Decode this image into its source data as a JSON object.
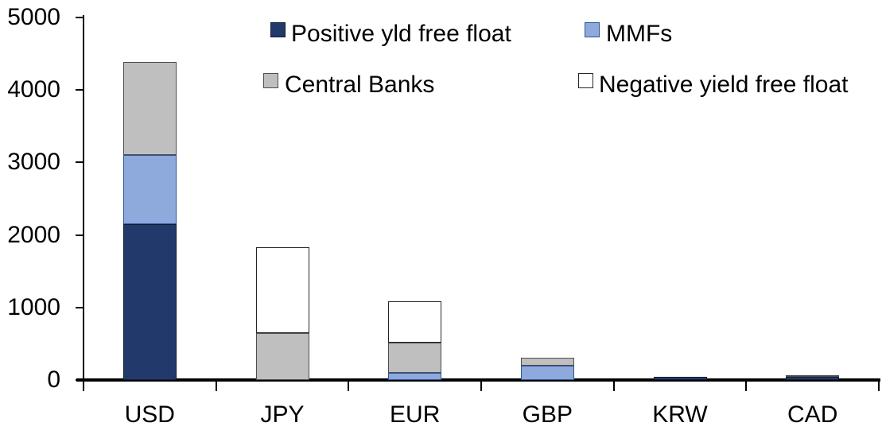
{
  "chart_data": {
    "type": "bar",
    "stacked": true,
    "title": "",
    "xlabel": "",
    "ylabel": "",
    "categories": [
      "USD",
      "JPY",
      "EUR",
      "GBP",
      "KRW",
      "CAD"
    ],
    "series": [
      {
        "name": "Positive yld free float",
        "color": "#213A6B",
        "border": "#101C33",
        "values": [
          2150,
          0,
          0,
          0,
          45,
          40
        ]
      },
      {
        "name": "MMFs",
        "color": "#8EA9DB",
        "border": "#2F5496",
        "values": [
          950,
          0,
          100,
          200,
          0,
          0
        ]
      },
      {
        "name": "Central Banks",
        "color": "#BFBFBF",
        "border": "#4D4D4D",
        "values": [
          1290,
          650,
          420,
          110,
          0,
          30
        ]
      },
      {
        "name": "Negative yield free float",
        "color": "#FFFFFF",
        "border": "#262626",
        "values": [
          0,
          1180,
          570,
          0,
          0,
          0
        ]
      }
    ],
    "totals_approx": [
      4390,
      1830,
      1090,
      310,
      45,
      70
    ],
    "ylim": [
      0,
      5000
    ],
    "yticks": [
      "0",
      "1000",
      "2000",
      "3000",
      "4000",
      "5000"
    ],
    "grid": false,
    "legend_position": "top-inside",
    "legend_order": [
      "Positive yld free float",
      "MMFs",
      "Central Banks",
      "Negative yield free float"
    ],
    "axis_color": "#000000",
    "background_color": "#FFFFFF"
  }
}
